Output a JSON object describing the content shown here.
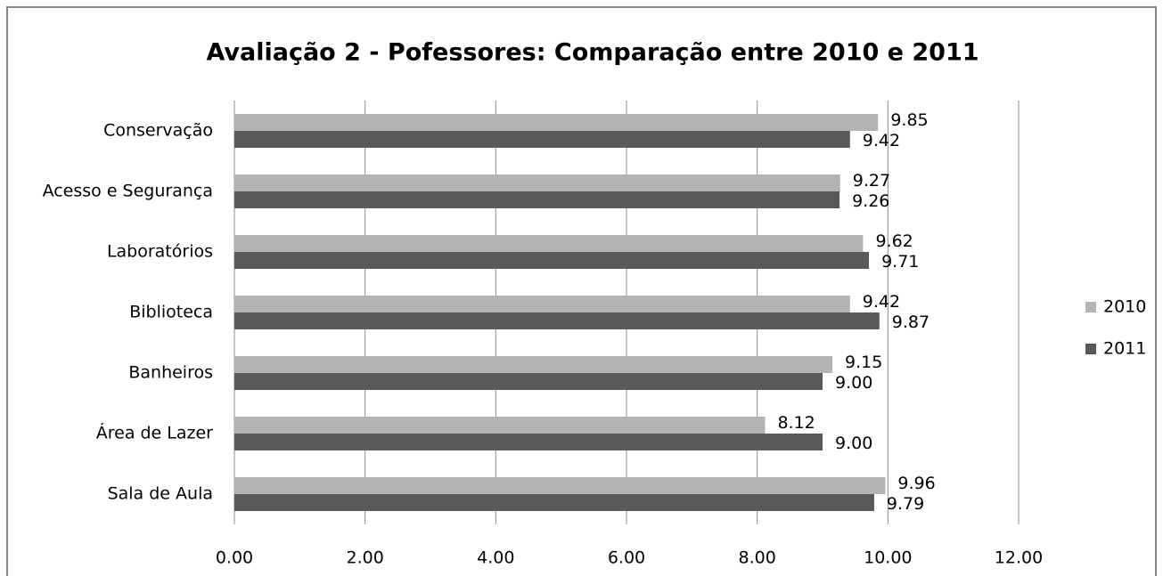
{
  "chart_data": {
    "type": "hbar",
    "title": "Avaliação 2 - Pofessores: Comparação entre 2010 e 2011",
    "categories": [
      "Conservação",
      "Acesso e Segurança",
      "Laboratórios",
      "Biblioteca",
      "Banheiros",
      "Área de Lazer",
      "Sala de Aula"
    ],
    "series": [
      {
        "name": "2010",
        "color": "#b3b3b3",
        "values": [
          9.85,
          9.27,
          9.62,
          9.42,
          9.15,
          8.12,
          9.96
        ],
        "value_labels": [
          "9.85",
          "9.27",
          "9.62",
          "9.42",
          "9.15",
          "8.12",
          "9.96"
        ]
      },
      {
        "name": "2011",
        "color": "#595959",
        "values": [
          9.42,
          9.26,
          9.71,
          9.87,
          9.0,
          9.0,
          9.79
        ],
        "value_labels": [
          "9.42",
          "9.26",
          "9.71",
          "9.87",
          "9.00",
          "9.00",
          "9.79"
        ]
      }
    ],
    "xlim": [
      0,
      12
    ],
    "xticks": [
      {
        "value": 0,
        "label": "0.00"
      },
      {
        "value": 2,
        "label": "2.00"
      },
      {
        "value": 4,
        "label": "4.00"
      },
      {
        "value": 6,
        "label": "6.00"
      },
      {
        "value": 8,
        "label": "8.00"
      },
      {
        "value": 10,
        "label": "10.00"
      },
      {
        "value": 12,
        "label": "12.00"
      }
    ],
    "grid": true,
    "legend": "right"
  }
}
